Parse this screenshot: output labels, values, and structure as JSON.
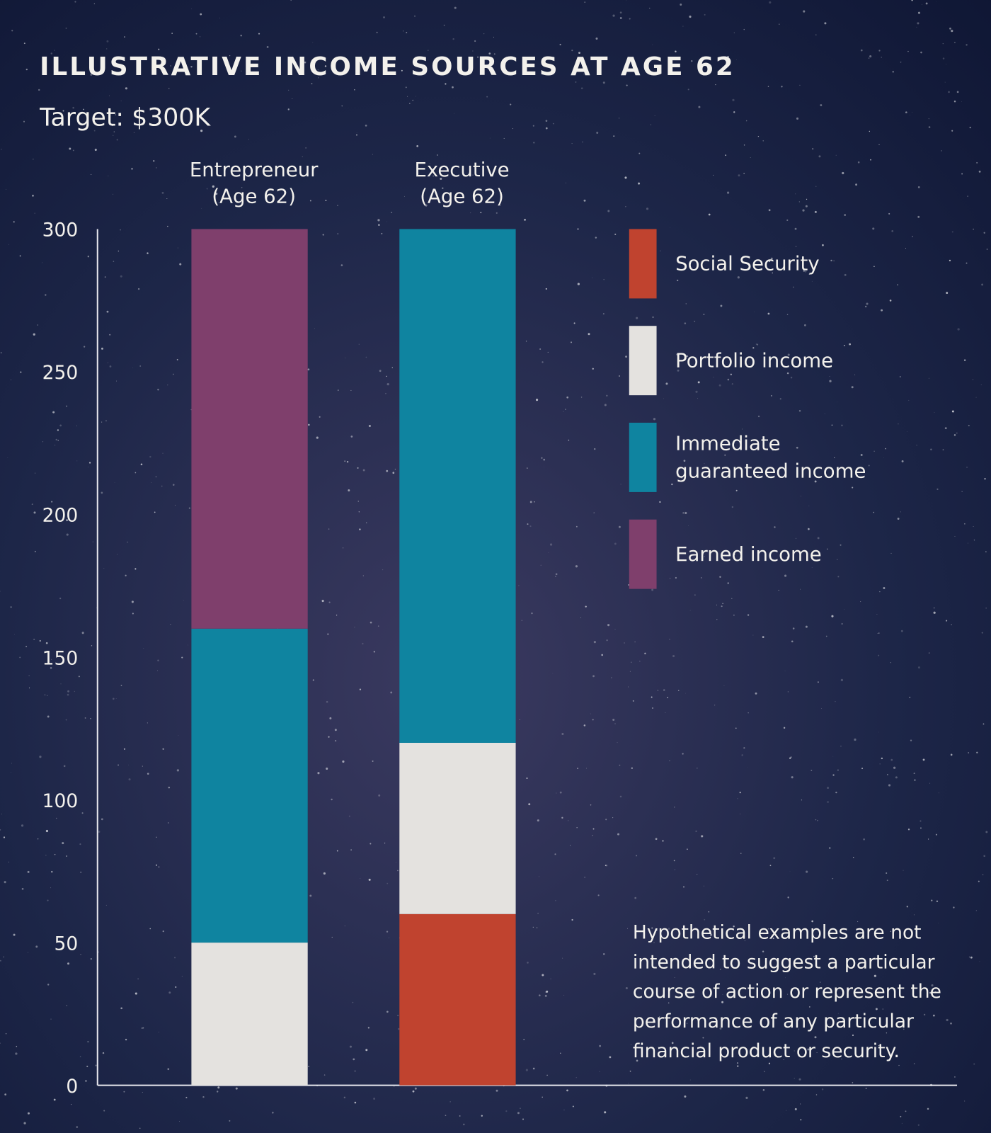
{
  "chart_data": {
    "type": "bar",
    "stacked": true,
    "title": "ILLUSTRATIVE INCOME SOURCES AT AGE 62",
    "subtitle": "Target: $300K",
    "categories": [
      [
        "Entrepreneur",
        "(Age 62)"
      ],
      [
        "Executive",
        "(Age 62)"
      ]
    ],
    "series": [
      {
        "name": "Social Security",
        "color": "#c0432f",
        "values": [
          0,
          60
        ]
      },
      {
        "name": "Portfolio income",
        "color": "#e4e2df",
        "values": [
          50,
          60
        ]
      },
      {
        "name": "Immediate guaranteed income",
        "label_lines": [
          "Immediate",
          "guaranteed income"
        ],
        "color": "#0f84a0",
        "values": [
          110,
          180
        ]
      },
      {
        "name": "Earned income",
        "color": "#7f3f6c",
        "values": [
          140,
          0
        ]
      }
    ],
    "ylim": [
      0,
      300
    ],
    "yticks": [
      0,
      50,
      100,
      150,
      200,
      250,
      300
    ],
    "xlabel": "",
    "ylabel": "",
    "grid": false,
    "legend_placement": "right",
    "footnote": [
      "Hypothetical examples are not",
      "intended to suggest a particular",
      "course of action or represent the",
      "performance of any particular",
      "financial product or security."
    ]
  }
}
